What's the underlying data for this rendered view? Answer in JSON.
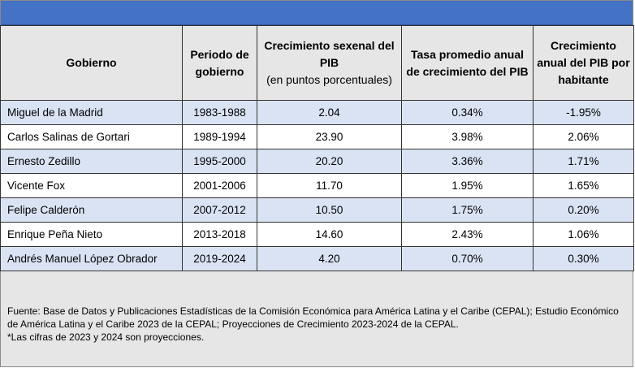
{
  "table": {
    "headers": {
      "gobierno": "Gobierno",
      "periodo": "Periodo de gobierno",
      "sexenal": "Crecimiento sexenal del PIB",
      "sexenal_sub": "(en puntos porcentuales)",
      "tasa": "Tasa promedio anual de crecimiento del PIB",
      "habitante": "Crecimiento anual del PIB por habitante"
    },
    "rows": [
      {
        "gobierno": "Miguel de la Madrid",
        "periodo": "1983-1988",
        "sexenal": "2.04",
        "tasa": "0.34%",
        "habitante": "-1.95%"
      },
      {
        "gobierno": "Carlos Salinas de Gortari",
        "periodo": "1989-1994",
        "sexenal": "23.90",
        "tasa": "3.98%",
        "habitante": "2.06%"
      },
      {
        "gobierno": "Ernesto Zedillo",
        "periodo": "1995-2000",
        "sexenal": "20.20",
        "tasa": "3.36%",
        "habitante": "1.71%"
      },
      {
        "gobierno": "Vicente Fox",
        "periodo": "2001-2006",
        "sexenal": "11.70",
        "tasa": "1.95%",
        "habitante": "1.65%"
      },
      {
        "gobierno": "Felipe Calderón",
        "periodo": "2007-2012",
        "sexenal": "10.50",
        "tasa": "1.75%",
        "habitante": "0.20%"
      },
      {
        "gobierno": "Enrique Peña Nieto",
        "periodo": "2013-2018",
        "sexenal": "14.60",
        "tasa": "2.43%",
        "habitante": "1.06%"
      },
      {
        "gobierno": "Andrés Manuel López Obrador",
        "periodo": "2019-2024",
        "sexenal": "4.20",
        "tasa": "0.70%",
        "habitante": "0.30%"
      }
    ]
  },
  "footer": {
    "source": "Fuente: Base de Datos y Publicaciones Estadísticas de la Comisión Económica para América Latina y el Caribe (CEPAL); Estudio Económico de América Latina y el Caribe 2023 de la CEPAL; Proyecciones de Crecimiento 2023-2024 de la CEPAL.",
    "note": "*Las cifras de 2023 y 2024 son proyecciones."
  },
  "colors": {
    "header_bar": "#4472c4",
    "row_band": "#dae3f3",
    "header_bg": "#e6e6e6"
  }
}
